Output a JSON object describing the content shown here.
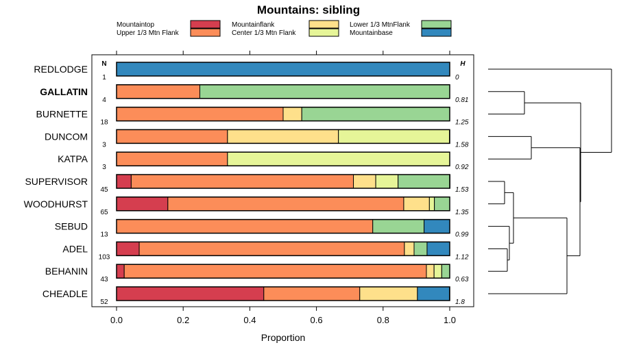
{
  "chart_data": {
    "type": "bar",
    "orientation": "horizontal",
    "stacked": true,
    "title": "Mountains: sibling",
    "xlabel": "Proportion",
    "ylabel": "",
    "xlim": [
      0,
      1
    ],
    "xticks": [
      "0.0",
      "0.2",
      "0.4",
      "0.6",
      "0.8",
      "1.0"
    ],
    "legend_position": "top",
    "count_header": "N",
    "entropy_header": "H",
    "bold_category": "GALLATIN",
    "categories": [
      "REDLODGE",
      "GALLATIN",
      "BURNETTE",
      "DUNCOM",
      "KATPA",
      "SUPERVISOR",
      "WOODHURST",
      "SEBUD",
      "ADEL",
      "BEHANIN",
      "CHEADLE"
    ],
    "n_labels": [
      "1",
      "4",
      "18",
      "3",
      "3",
      "45",
      "65",
      "13",
      "103",
      "43",
      "52"
    ],
    "h_labels": [
      "0",
      "0.81",
      "1.25",
      "1.58",
      "0.92",
      "1.53",
      "1.35",
      "0.99",
      "1.12",
      "0.63",
      "1.8"
    ],
    "series": [
      {
        "name": "Mountaintop",
        "color": "#D53E4F",
        "values": [
          0,
          0,
          0,
          0,
          0,
          0.044,
          0.154,
          0,
          0.068,
          0.023,
          0.442
        ]
      },
      {
        "name": "Upper 1/3 Mtn Flank",
        "color": "#FC8D59",
        "values": [
          0,
          0.25,
          0.5,
          0.333,
          0.333,
          0.667,
          0.708,
          0.769,
          0.796,
          0.907,
          0.288
        ]
      },
      {
        "name": "Mountainflank",
        "color": "#FEE08B",
        "values": [
          0,
          0,
          0.056,
          0.333,
          0,
          0.067,
          0.077,
          0,
          0.029,
          0.023,
          0.173
        ]
      },
      {
        "name": "Center 1/3 Mtn Flank",
        "color": "#E6F598",
        "values": [
          0,
          0,
          0,
          0.333,
          0.667,
          0.067,
          0.015,
          0,
          0,
          0.023,
          0
        ]
      },
      {
        "name": "Lower 1/3 MtnFlank",
        "color": "#99D594",
        "values": [
          0,
          0.75,
          0.444,
          0,
          0,
          0.156,
          0.046,
          0.154,
          0.039,
          0.024,
          0
        ]
      },
      {
        "name": "Mountainbase",
        "color": "#3288BD",
        "values": [
          1,
          0,
          0,
          0,
          0,
          0,
          0,
          0.077,
          0.068,
          0,
          0.096
        ]
      }
    ],
    "dendrogram": "right side; merges: (SUPERVISOR, WOODHURST), (ADEL, BEHANIN), (SEBUD, (ADEL, BEHANIN)), ((SUPERVISOR, WOODHURST), (SEBUD, ...)), (... , CHEADLE), (DUNCOM, KATPA), ((DUNCOM, KATPA), rest), (GALLATIN, BURNETTE), ((GALLATIN, BURNETTE), ...), (REDLODGE, all)"
  }
}
